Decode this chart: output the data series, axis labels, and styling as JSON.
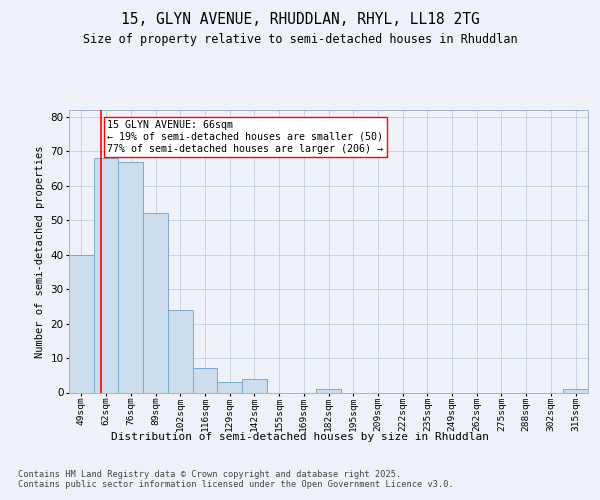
{
  "title_line1": "15, GLYN AVENUE, RHUDDLAN, RHYL, LL18 2TG",
  "title_line2": "Size of property relative to semi-detached houses in Rhuddlan",
  "xlabel": "Distribution of semi-detached houses by size in Rhuddlan",
  "ylabel": "Number of semi-detached properties",
  "categories": [
    "49sqm",
    "62sqm",
    "76sqm",
    "89sqm",
    "102sqm",
    "116sqm",
    "129sqm",
    "142sqm",
    "155sqm",
    "169sqm",
    "182sqm",
    "195sqm",
    "209sqm",
    "222sqm",
    "235sqm",
    "249sqm",
    "262sqm",
    "275sqm",
    "288sqm",
    "302sqm",
    "315sqm"
  ],
  "values": [
    40,
    68,
    67,
    52,
    24,
    7,
    3,
    4,
    0,
    0,
    1,
    0,
    0,
    0,
    0,
    0,
    0,
    0,
    0,
    0,
    1
  ],
  "bar_color": "#ccdded",
  "bar_edge_color": "#7aaac8",
  "annotation_line1": "15 GLYN AVENUE: 66sqm",
  "annotation_line2": "← 19% of semi-detached houses are smaller (50)",
  "annotation_line3": "77% of semi-detached houses are larger (206) →",
  "marker_color": "red",
  "ylim": [
    0,
    82
  ],
  "yticks": [
    0,
    10,
    20,
    30,
    40,
    50,
    60,
    70,
    80
  ],
  "footer_line1": "Contains HM Land Registry data © Crown copyright and database right 2025.",
  "footer_line2": "Contains public sector information licensed under the Open Government Licence v3.0.",
  "background_color": "#eef2f8",
  "plot_bg_color": "#eef2f8",
  "grid_color": "#c0cee0",
  "spine_color": "#a0b4cc"
}
